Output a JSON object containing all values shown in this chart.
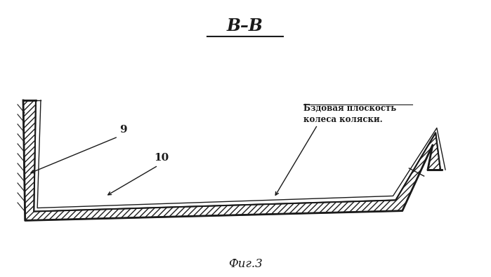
{
  "title": "B–B",
  "subtitle": "Фиг.3",
  "annotation_line1": "Бздовая плоскость",
  "annotation_line2": "колеса коляски.",
  "label_9": "9",
  "label_10": "10",
  "bg_color": "#ffffff",
  "line_color": "#1a1a1a",
  "figsize": [
    6.99,
    3.95
  ],
  "dpi": 100
}
